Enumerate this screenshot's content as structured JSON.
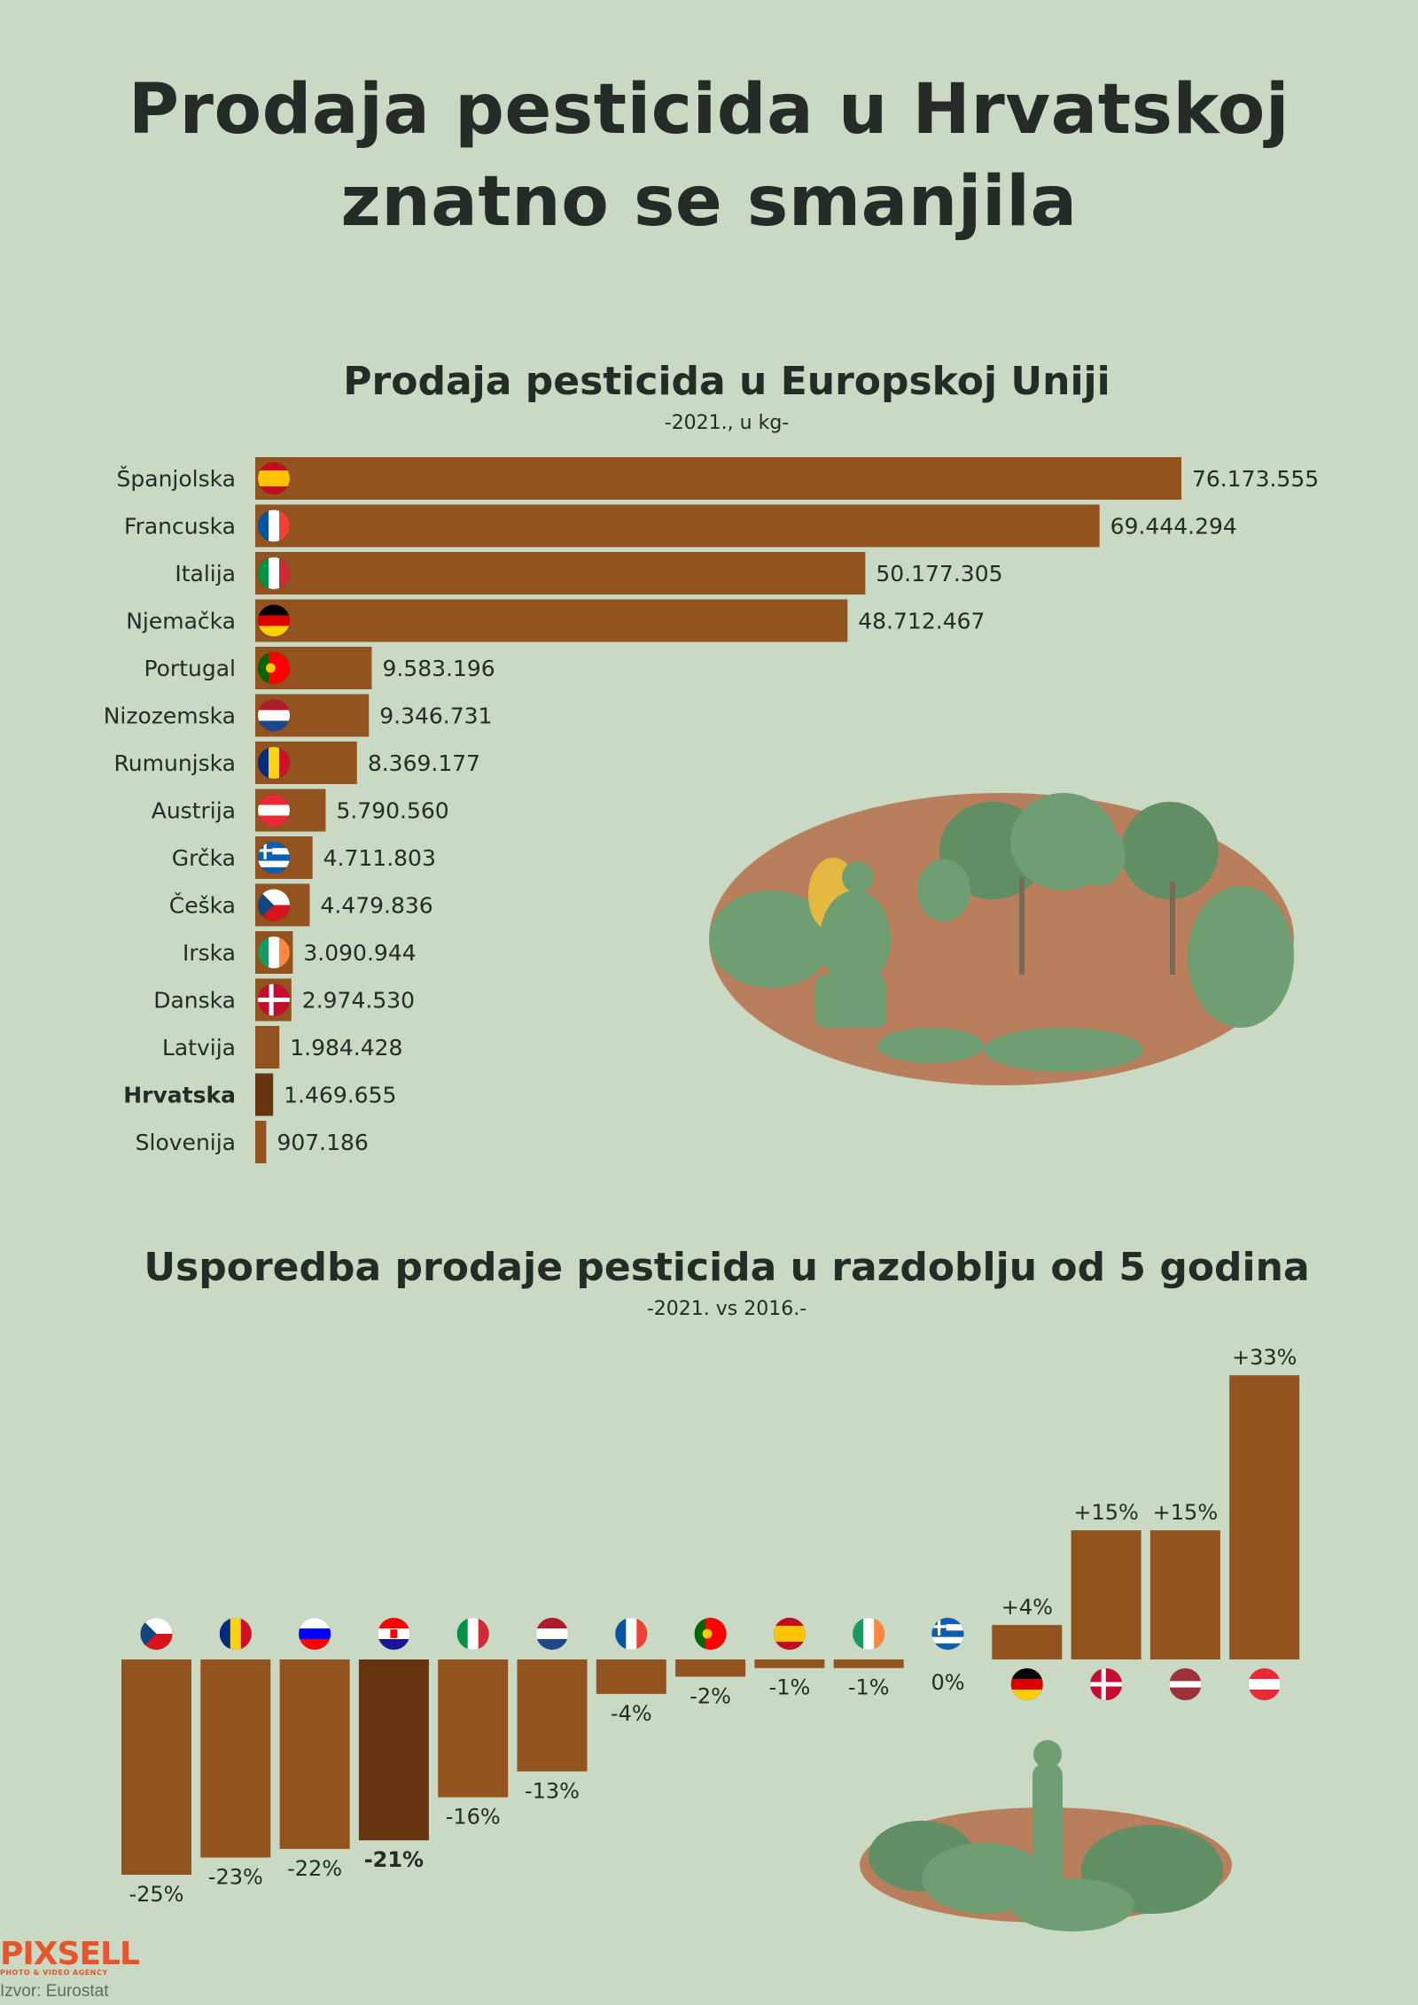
{
  "header": {
    "title_line1": "Prodaja pesticida u Hrvatskoj",
    "title_line2": "znatno se smanjila"
  },
  "footer": {
    "brand": "PIXSELL",
    "brand_tagline": "PHOTO & VIDEO AGENCY",
    "source": "Izvor: Eurostat"
  },
  "colors": {
    "bar": "#93531e",
    "bar_highlight": "#66350f",
    "background": "#c9d9c4"
  },
  "chart_data": [
    {
      "type": "bar",
      "orientation": "horizontal",
      "title": "Prodaja pesticida u Europskoj Uniji",
      "subtitle": "-2021., u kg-",
      "categories": [
        "Španjolska",
        "Francuska",
        "Italija",
        "Njemačka",
        "Portugal",
        "Nizozemska",
        "Rumunjska",
        "Austrija",
        "Grčka",
        "Češka",
        "Irska",
        "Danska",
        "Latvija",
        "Hrvatska",
        "Slovenija"
      ],
      "values": [
        76173555,
        69444294,
        50177305,
        48712467,
        9583196,
        9346731,
        8369177,
        5790560,
        4711803,
        4479836,
        3090944,
        2974530,
        1984428,
        1469655,
        907186
      ],
      "value_labels": [
        "76.173.555",
        "69.444.294",
        "50.177.305",
        "48.712.467",
        "9.583.196",
        "9.346.731",
        "8.369.177",
        "5.790.560",
        "4.711.803",
        "4.479.836",
        "3.090.944",
        "2.974.530",
        "1.984.428",
        "1.469.655",
        "907.186"
      ],
      "flags": [
        "es",
        "fr",
        "it",
        "de",
        "pt",
        "nl",
        "ro",
        "at",
        "gr",
        "cz",
        "ie",
        "dk",
        "lv",
        "hr",
        "si"
      ],
      "highlight": "Hrvatska"
    },
    {
      "type": "bar",
      "orientation": "vertical",
      "title": "Usporedba prodaje pesticida u razdoblju od 5 godina",
      "subtitle": "-2021. vs 2016.-",
      "categories": [
        "cz",
        "ro",
        "si",
        "hr",
        "it",
        "nl",
        "fr",
        "pt",
        "es",
        "ie",
        "gr",
        "de",
        "dk",
        "lv",
        "at"
      ],
      "values": [
        -25,
        -23,
        -22,
        -21,
        -16,
        -13,
        -4,
        -2,
        -1,
        -1,
        0,
        4,
        15,
        15,
        33
      ],
      "value_labels": [
        "-25%",
        "-23%",
        "-22%",
        "-21%",
        "-16%",
        "-13%",
        "-4%",
        "-2%",
        "-1%",
        "-1%",
        "0%",
        "+4%",
        "+15%",
        "+15%",
        "+33%"
      ],
      "highlight": "hr"
    }
  ]
}
